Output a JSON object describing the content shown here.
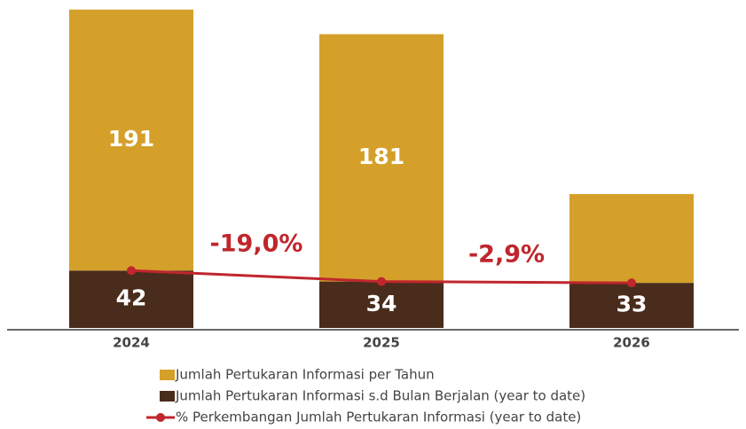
{
  "chart_data": {
    "type": "bar",
    "stacked": true,
    "categories": [
      "2024",
      "2025",
      "2026"
    ],
    "series": [
      {
        "name": "Jumlah Pertukaran Informasi s.d Bulan Berjalan (year to date)",
        "color": "#4a2c1c",
        "values": [
          42,
          34,
          33
        ],
        "labels": [
          true,
          true,
          true
        ]
      },
      {
        "name": "Jumlah Pertukaran Informasi per Tahun",
        "color": "#d4a02a",
        "values": [
          191,
          181,
          65
        ],
        "labels": [
          true,
          true,
          false
        ]
      },
      {
        "name": "% Perkembangan Jumlah Pertukaran Informasi (year to date)",
        "color": "#c0262d",
        "type": "line",
        "values": [
          42,
          34,
          33
        ]
      }
    ],
    "annotations": [
      "-19,0%",
      "-2,9%"
    ],
    "legend_order": [
      1,
      0,
      2
    ],
    "ylim": [
      0,
      240
    ]
  }
}
